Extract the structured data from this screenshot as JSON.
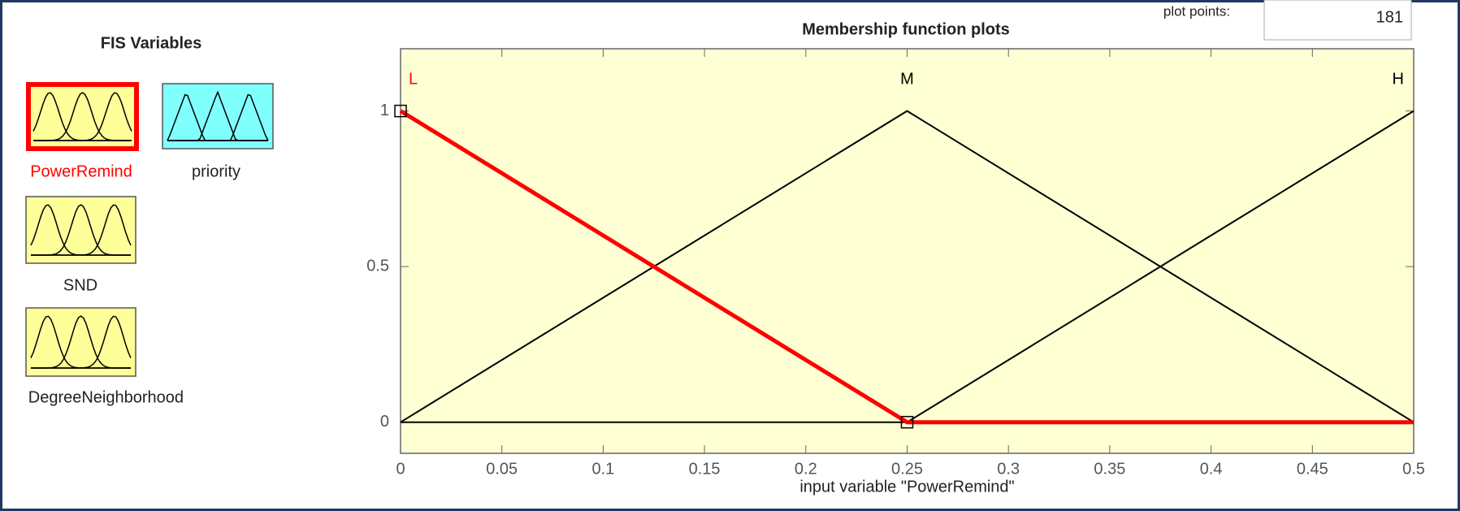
{
  "fis_panel": {
    "title": "FIS Variables",
    "variables": [
      "PowerRemind",
      "priority",
      "SND",
      "DegreeNeighborhood"
    ]
  },
  "plot_points": {
    "label": "plot points:",
    "value": "181"
  },
  "chart_data": {
    "type": "line",
    "title": "Membership function plots",
    "x_label": "input variable \"PowerRemind\"",
    "x": [
      0,
      0.25,
      0.5
    ],
    "series": [
      {
        "name": "L",
        "color": "#ff0000",
        "values": [
          1,
          0,
          0
        ]
      },
      {
        "name": "M",
        "color": "#000000",
        "values": [
          0,
          1,
          0
        ]
      },
      {
        "name": "H",
        "color": "#000000",
        "values": [
          0,
          0,
          1
        ]
      }
    ],
    "xlim": [
      0,
      0.5
    ],
    "xticks": [
      0,
      0.05,
      0.1,
      0.15,
      0.2,
      0.25,
      0.3,
      0.35,
      0.4,
      0.45,
      0.5
    ],
    "ylim": [
      -0.1,
      1.2
    ],
    "yticks": [
      0,
      0.5,
      1
    ]
  }
}
